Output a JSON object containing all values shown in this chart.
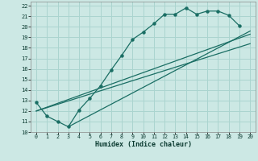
{
  "xlabel": "Humidex (Indice chaleur)",
  "bg_color": "#cce8e4",
  "grid_color": "#aad4cf",
  "line_color": "#1a6e64",
  "xlim": [
    -0.5,
    20.5
  ],
  "ylim": [
    10,
    22.4
  ],
  "xticks": [
    0,
    1,
    2,
    3,
    4,
    5,
    6,
    7,
    8,
    9,
    10,
    11,
    12,
    13,
    14,
    15,
    16,
    17,
    18,
    19,
    20
  ],
  "yticks": [
    10,
    11,
    12,
    13,
    14,
    15,
    16,
    17,
    18,
    19,
    20,
    21,
    22
  ],
  "curve_x": [
    0,
    1,
    2,
    3,
    4,
    5,
    6,
    7,
    8,
    9,
    10,
    11,
    12,
    13,
    14,
    15,
    16,
    17,
    18,
    19
  ],
  "curve_y": [
    12.8,
    11.5,
    11.0,
    10.5,
    12.1,
    13.2,
    14.4,
    15.9,
    17.3,
    18.8,
    19.5,
    20.3,
    21.2,
    21.2,
    21.8,
    21.2,
    21.5,
    21.5,
    21.1,
    20.1
  ],
  "line1_x": [
    0,
    20
  ],
  "line1_y": [
    12.0,
    19.3
  ],
  "line2_x": [
    0,
    20
  ],
  "line2_y": [
    12.0,
    18.4
  ],
  "line3_x": [
    3,
    20
  ],
  "line3_y": [
    10.5,
    19.6
  ]
}
